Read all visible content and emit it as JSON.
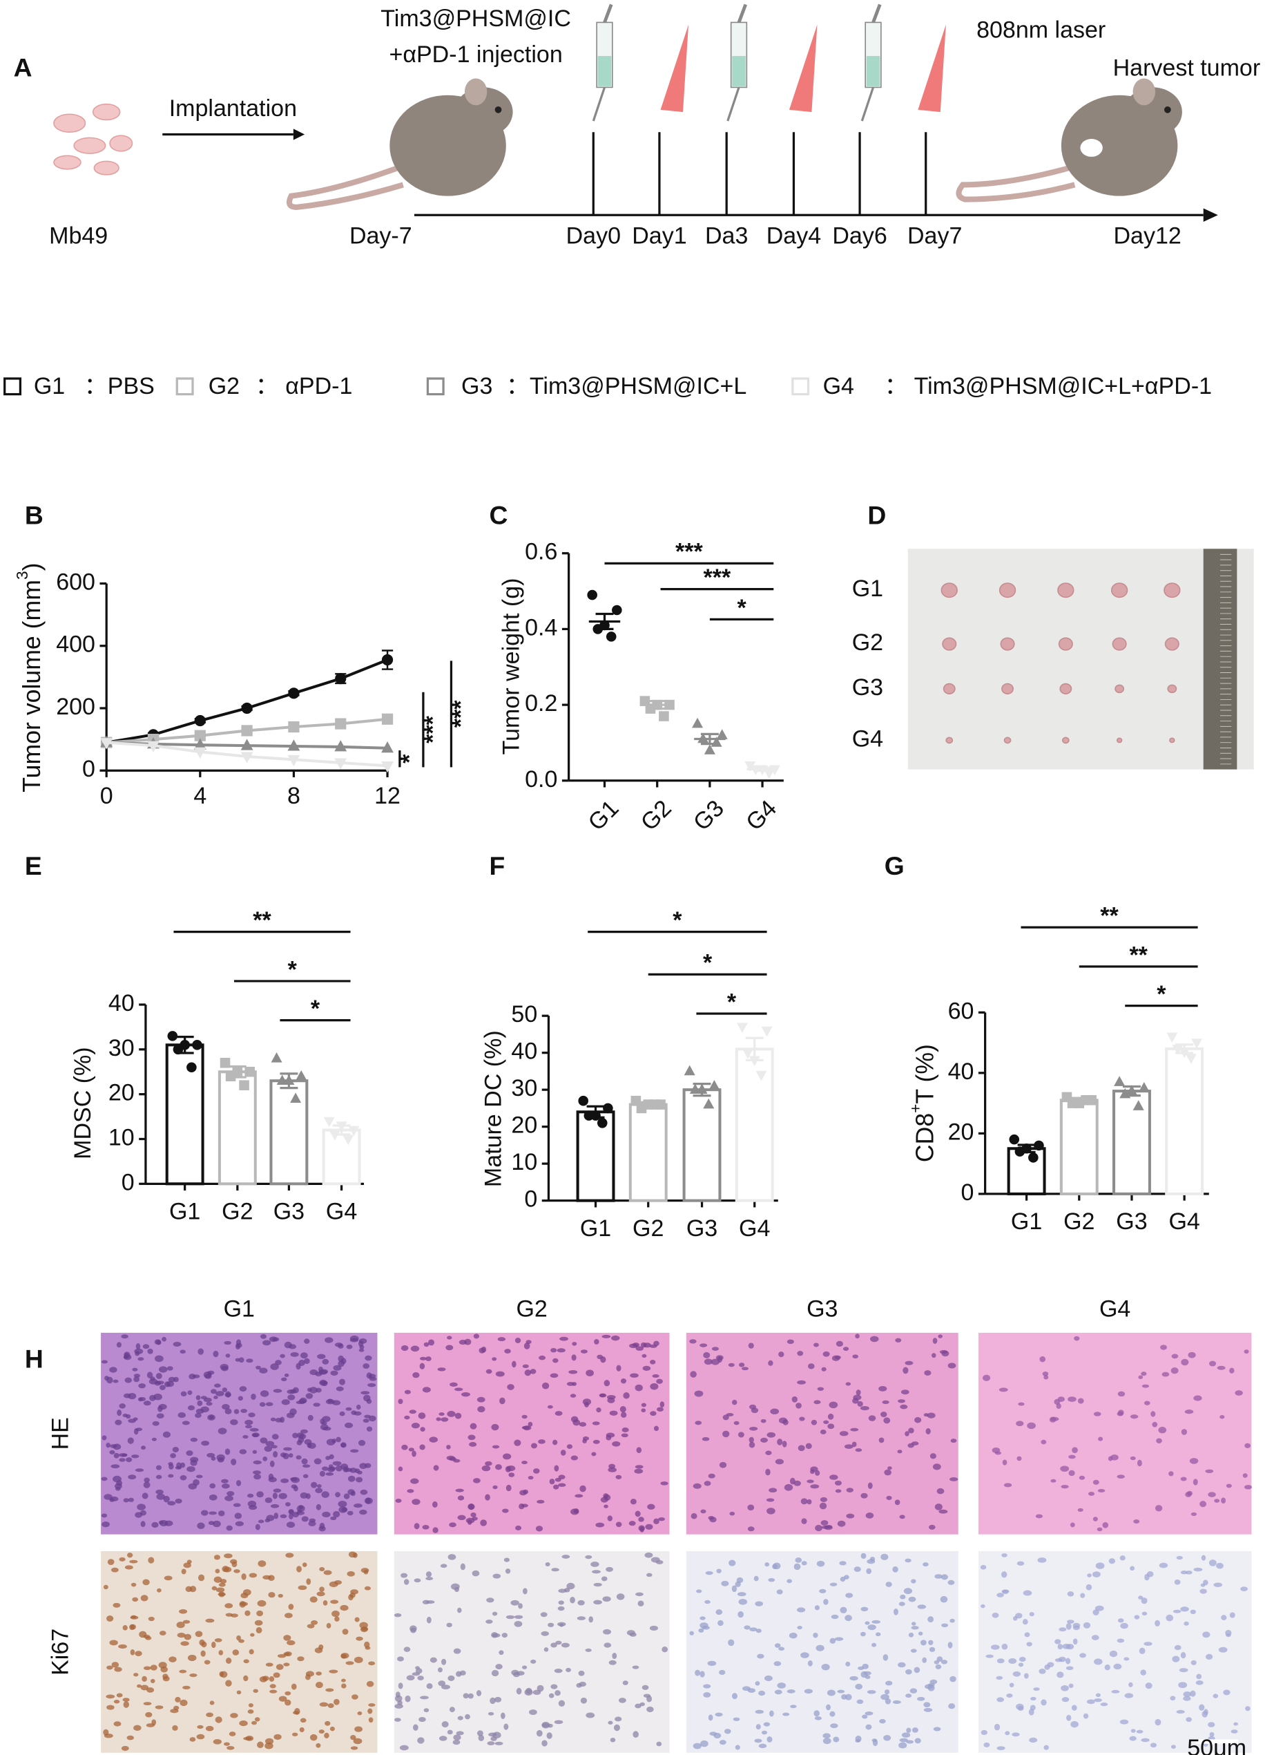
{
  "panel_labels": [
    "A",
    "B",
    "C",
    "D",
    "E",
    "F",
    "G",
    "H"
  ],
  "schematic": {
    "cell_label": "Mb49",
    "implant": "Implantation",
    "injection": [
      "Tim3@PHSM@IC",
      "+αPD-1 injection"
    ],
    "laser": "808nm laser",
    "harvest": "Harvest tumor",
    "days": [
      "Day-7",
      "Day0",
      "Day1",
      "Da3",
      "Day4",
      "Day6",
      "Day7",
      "Day12"
    ]
  },
  "legend": [
    {
      "group": "G1",
      "label": "：PBS",
      "color": "#111111"
    },
    {
      "group": "G2",
      "label": "： αPD-1",
      "color": "#b8b8b8"
    },
    {
      "group": "G3",
      "label": "：Tim3@PHSM@IC+L",
      "color": "#8c8c8c"
    },
    {
      "group": "G4",
      "label": "： Tim3@PHSM@IC+L+αPD-1",
      "color": "#e6e6e6"
    }
  ],
  "chart_data": [
    {
      "type": "line",
      "y_label": [
        "Tumor volume (mm",
        "3",
        ")"
      ],
      "x": [
        0,
        2,
        4,
        6,
        8,
        10,
        12
      ],
      "xlim": [
        0,
        12
      ],
      "xticks": [
        0,
        4,
        8,
        12
      ],
      "ylim": [
        0,
        600
      ],
      "yticks": [
        0,
        200,
        400,
        600
      ],
      "series": [
        {
          "name": "G1",
          "color": "#111111",
          "values": [
            90,
            115,
            160,
            200,
            248,
            295,
            355
          ],
          "errors": [
            3,
            5,
            6,
            6,
            7,
            15,
            30
          ]
        },
        {
          "name": "G2",
          "color": "#b8b8b8",
          "values": [
            90,
            100,
            112,
            128,
            140,
            150,
            165
          ]
        },
        {
          "name": "G3",
          "color": "#8c8c8c",
          "values": [
            90,
            85,
            82,
            80,
            78,
            76,
            72
          ]
        },
        {
          "name": "G4",
          "color": "#e6e6e6",
          "values": [
            90,
            80,
            60,
            45,
            35,
            25,
            15
          ]
        }
      ],
      "significance": [
        "*",
        "***",
        "***"
      ]
    },
    {
      "type": "dotplot",
      "y_label": "Tumor  weight (g)",
      "ylim": [
        0,
        0.6
      ],
      "yticks": [
        {
          "value": 0,
          "label": "0.0"
        },
        {
          "value": 0.2,
          "label": "0.2"
        },
        {
          "value": 0.4,
          "label": "0.4"
        },
        {
          "value": 0.6,
          "label": "0.6"
        }
      ],
      "series": [
        {
          "name": "G1",
          "color": "#111111",
          "mean": 0.42,
          "sem": 0.02,
          "points": [
            0.49,
            0.45,
            0.4,
            0.38,
            0.41
          ]
        },
        {
          "name": "G2",
          "color": "#b8b8b8",
          "mean": 0.2,
          "sem": 0.01,
          "points": [
            0.21,
            0.2,
            0.19,
            0.17,
            0.2
          ]
        },
        {
          "name": "G3",
          "color": "#8c8c8c",
          "mean": 0.11,
          "sem": 0.013,
          "points": [
            0.15,
            0.12,
            0.11,
            0.1,
            0.08
          ]
        },
        {
          "name": "G4",
          "color": "#e6e6e6",
          "mean": 0.03,
          "sem": 0.004,
          "points": [
            0.04,
            0.03,
            0.03,
            0.02,
            0.03
          ]
        }
      ],
      "significance": [
        "***",
        "***",
        "*"
      ]
    },
    {
      "type": "bar",
      "y_label": "MDSC    (%)",
      "ylim": [
        0,
        40
      ],
      "yticks": [
        0,
        10,
        20,
        30,
        40
      ],
      "series": [
        {
          "name": "G1",
          "color": "#111111",
          "mean": 31,
          "sem": 1.8,
          "points": [
            33,
            31,
            30,
            26,
            31
          ]
        },
        {
          "name": "G2",
          "color": "#b8b8b8",
          "mean": 25,
          "sem": 1.2,
          "points": [
            27,
            25,
            24,
            22,
            25
          ]
        },
        {
          "name": "G3",
          "color": "#8c8c8c",
          "mean": 23,
          "sem": 1.6,
          "points": [
            28,
            24,
            23,
            19,
            23
          ]
        },
        {
          "name": "G4",
          "color": "#e6e6e6",
          "mean": 12,
          "sem": 1,
          "points": [
            14,
            12,
            11,
            10,
            13
          ]
        }
      ],
      "significance": [
        "**",
        "*",
        "*"
      ]
    },
    {
      "type": "bar",
      "y_label": "Mature DC (%)",
      "ylim": [
        0,
        50
      ],
      "yticks": [
        0,
        10,
        20,
        30,
        40,
        50
      ],
      "series": [
        {
          "name": "G1",
          "color": "#111111",
          "mean": 24,
          "sem": 1.5,
          "points": [
            27,
            25,
            23,
            21,
            23
          ]
        },
        {
          "name": "G2",
          "color": "#b8b8b8",
          "mean": 26,
          "sem": 0.6,
          "points": [
            27,
            26,
            25,
            26,
            26
          ]
        },
        {
          "name": "G3",
          "color": "#8c8c8c",
          "mean": 30,
          "sem": 1.6,
          "points": [
            35,
            31,
            30,
            26,
            30
          ]
        },
        {
          "name": "G4",
          "color": "#e6e6e6",
          "mean": 41,
          "sem": 3,
          "points": [
            47,
            46,
            40,
            34,
            38
          ]
        }
      ],
      "significance": [
        "*",
        "*",
        "*"
      ]
    },
    {
      "type": "bar",
      "y_label": [
        "CD8",
        "+",
        "T    (%)"
      ],
      "ylim": [
        0,
        60
      ],
      "yticks": [
        0,
        20,
        40,
        60
      ],
      "series": [
        {
          "name": "G1",
          "color": "#111111",
          "mean": 15,
          "sem": 1.2,
          "points": [
            18,
            16,
            14,
            12,
            15
          ]
        },
        {
          "name": "G2",
          "color": "#b8b8b8",
          "mean": 31,
          "sem": 0.7,
          "points": [
            32,
            31,
            30,
            31,
            30
          ]
        },
        {
          "name": "G3",
          "color": "#8c8c8c",
          "mean": 34,
          "sem": 1.5,
          "points": [
            37,
            35,
            33,
            29,
            34
          ]
        },
        {
          "name": "G4",
          "color": "#e6e6e6",
          "mean": 48,
          "sem": 1.4,
          "points": [
            52,
            50,
            48,
            45,
            47
          ]
        }
      ],
      "significance": [
        "**",
        "**",
        "*"
      ]
    }
  ],
  "photo": {
    "rows": [
      "G1",
      "G2",
      "G3",
      "G4"
    ]
  },
  "histology": {
    "columns": [
      "G1",
      "G2",
      "G3",
      "G4"
    ],
    "rows": [
      "HE",
      "Ki67"
    ],
    "scale_bar": "50μm"
  }
}
